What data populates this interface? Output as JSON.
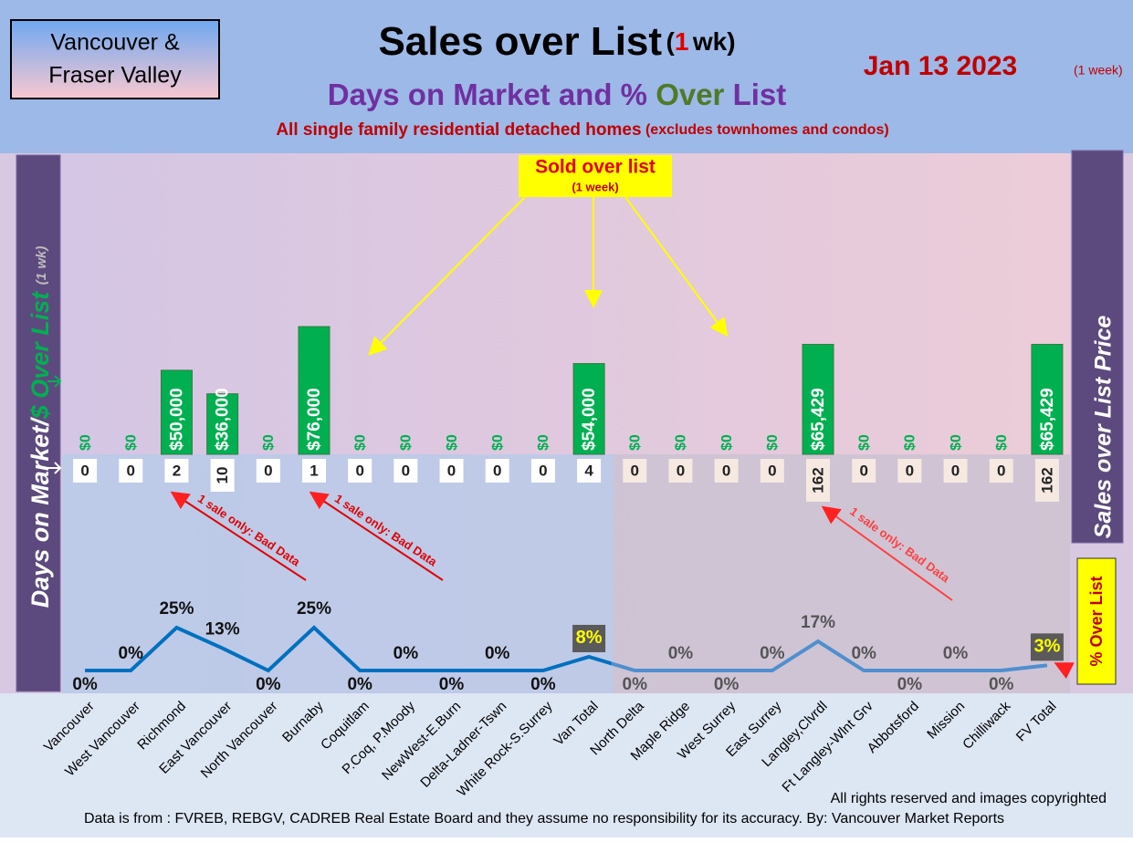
{
  "header": {
    "region_box": [
      "Vancouver &",
      "Fraser Valley"
    ],
    "title": "Sales over List",
    "title_note": [
      "(",
      "1",
      "wk)"
    ],
    "date": "Jan 13  2023",
    "date_note": "(1 week)",
    "subtitle": [
      "Days on Market and %",
      "Over",
      "List"
    ],
    "description": "All single family residential detached homes",
    "description_note": "(excludes townhomes and condos)"
  },
  "chart_data": {
    "type": "combo",
    "categories": [
      "Vancouver",
      "West Vancouver",
      "Richmond",
      "East Vancouver",
      "North Vancouver",
      "Burnaby",
      "Coquitlam",
      "P.Coq, P.Moody",
      "NewWest-E.Burn",
      "Delta-Ladner-Tswn",
      "White Rock-S.Surrey",
      "Van Total",
      "North Delta",
      "Maple Ridge",
      "West Surrey",
      "East Surrey",
      "Langley,Clvrdl",
      "Ft Langley-Wlnt Grv",
      "Abbotsford",
      "Mission",
      "Chilliwack",
      "FV Total"
    ],
    "y_label": [
      "Days on Market/",
      "$ Over List",
      "(1 wk)"
    ],
    "y2_label": "Sales over List Price",
    "series": [
      {
        "type": "bar",
        "color": "#00b050",
        "values": [
          0,
          0,
          50000,
          36000,
          0,
          76000,
          0,
          0,
          0,
          0,
          0,
          54000,
          0,
          0,
          0,
          0,
          65429,
          0,
          0,
          0,
          0,
          65429
        ],
        "value_labels": [
          "$0",
          "$0",
          "$50,000",
          "$36,000",
          "$0",
          "$76,000",
          "$0",
          "$0",
          "$0",
          "$0",
          "$0",
          "$54,000",
          "$0",
          "$0",
          "$0",
          "$0",
          "$65,429",
          "$0",
          "$0",
          "$0",
          "$0",
          "$65,429"
        ]
      },
      {
        "type": "box",
        "color": "#ffffff",
        "values": [
          0,
          0,
          2,
          10,
          0,
          1,
          0,
          0,
          0,
          0,
          0,
          4,
          0,
          0,
          0,
          0,
          162,
          0,
          0,
          0,
          0,
          162
        ]
      },
      {
        "type": "line",
        "name": "% Over List",
        "color": "#0070c0",
        "values": [
          0,
          0,
          25,
          13,
          0,
          25,
          0,
          0,
          0,
          0,
          0,
          8,
          0,
          0,
          0,
          0,
          17,
          0,
          0,
          0,
          0,
          3
        ],
        "value_labels": [
          "0%",
          "0%",
          "25%",
          "13%",
          "0%",
          "25%",
          "0%",
          "0%",
          "0%",
          "0%",
          "0%",
          "8%",
          "0%",
          "0%",
          "0%",
          "0%",
          "17%",
          "0%",
          "0%",
          "0%",
          "0%",
          "3%"
        ]
      }
    ],
    "callout": [
      "Sold over list",
      "(1 week)"
    ],
    "annotations": [
      "1 sale only: Bad Data",
      "1 sale only: Bad Data",
      "1 sale only: Bad Data"
    ]
  },
  "footer": {
    "rights": "All rights reserved and  images copyrighted",
    "source": "Data is from : FVREB, REBGV, CADREB Real Estate Board and they assume no responsibility for its accuracy. By: Vancouver Market Reports"
  }
}
